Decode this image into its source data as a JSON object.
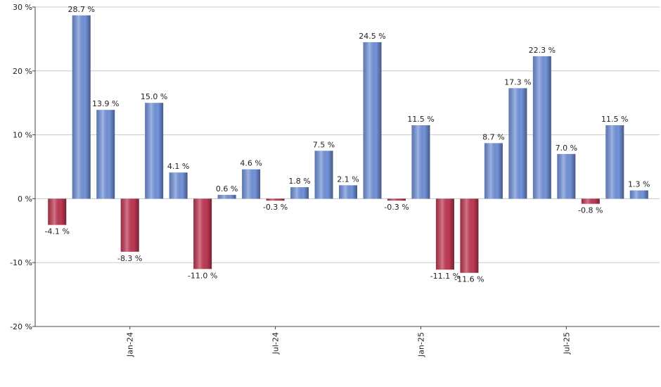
{
  "chart_data": {
    "type": "bar",
    "categories": [
      null,
      null,
      null,
      "Jan-24",
      null,
      null,
      null,
      null,
      null,
      "Jul-24",
      null,
      null,
      null,
      null,
      null,
      "Jan-25",
      null,
      null,
      null,
      null,
      null,
      "Jul-25",
      null,
      null,
      null
    ],
    "values": [
      -4.1,
      28.7,
      13.9,
      -8.3,
      15.0,
      4.1,
      -11.0,
      0.6,
      4.6,
      -0.3,
      1.8,
      7.5,
      2.1,
      24.5,
      -0.3,
      11.5,
      -11.1,
      -11.6,
      8.7,
      17.3,
      22.3,
      7.0,
      -0.8,
      11.5,
      1.3
    ],
    "value_labels": [
      "-4.1 %",
      "28.7 %",
      "13.9 %",
      "-8.3 %",
      "15.0 %",
      "4.1 %",
      "-11.0 %",
      "0.6 %",
      "4.6 %",
      "-0.3 %",
      "1.8 %",
      "7.5 %",
      "2.1 %",
      "24.5 %",
      "-0.3 %",
      "11.5 %",
      "-11.1 %",
      "-11.6 %",
      "8.7 %",
      "17.3 %",
      "22.3 %",
      "7.0 %",
      "-0.8 %",
      "11.5 %",
      "1.3 %"
    ],
    "color": "#7495dd",
    "negative_color": "#c23a55",
    "ylim": [
      -20,
      30
    ],
    "yticks": [
      {
        "value": -20,
        "label": "-20 %"
      },
      {
        "value": -10,
        "label": "-10 %"
      },
      {
        "value": 0,
        "label": "0 %"
      },
      {
        "value": 10,
        "label": "10 %"
      },
      {
        "value": 20,
        "label": "20 %"
      },
      {
        "value": 30,
        "label": "30 %"
      }
    ],
    "grid": true
  }
}
